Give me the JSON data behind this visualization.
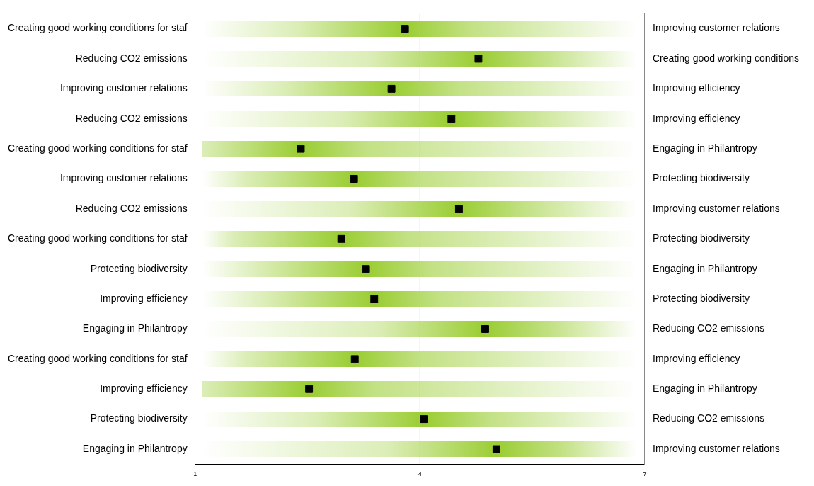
{
  "chart_data": {
    "type": "scatter",
    "orientation": "horizontal",
    "marker": "square",
    "color": "#000000",
    "categories": [
      "Creating good working conditions for staf",
      "Reducing CO2 emissions",
      "Improving customer relations",
      "Reducing CO2 emissions",
      "Creating good working conditions for staf",
      "Improving customer relations",
      "Reducing CO2 emissions",
      "Creating good working conditions for staf",
      "Protecting biodiversity",
      "Improving efficiency",
      "Engaging in Philantropy",
      "Creating good working conditions for staf",
      "Improving efficiency",
      "Protecting biodiversity",
      "Engaging in Philantropy"
    ],
    "y2_categories": [
      "Improving customer relations",
      "Creating good working conditions",
      "Improving efficiency",
      "Improving efficiency",
      "Engaging in Philantropy",
      "Protecting biodiversity",
      "Improving customer relations",
      "Protecting biodiversity",
      "Engaging in Philantropy",
      "Protecting biodiversity",
      "Reducing CO2 emissions",
      "Improving efficiency",
      "Engaging in Philantropy",
      "Reducing CO2 emissions",
      "Improving customer relations"
    ],
    "values": [
      3.8,
      4.78,
      3.62,
      4.42,
      2.41,
      3.12,
      4.52,
      2.95,
      3.28,
      3.39,
      4.87,
      3.13,
      2.52,
      4.05,
      5.02
    ],
    "xlim": [
      1,
      7
    ],
    "xticks": [
      1,
      4,
      7
    ],
    "ref_lines": [
      {
        "axis": "x",
        "value": 4,
        "color": "#c0c0c0"
      }
    ],
    "grid": false,
    "legend": false
  }
}
